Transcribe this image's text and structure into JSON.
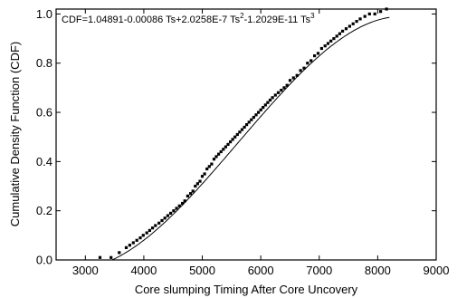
{
  "chart_data": {
    "type": "scatter",
    "title": "",
    "xlabel": "Core slumping Timing After Core Uncovery",
    "ylabel": "Cumulative Density Function (CDF)",
    "xlim": [
      2500,
      9000
    ],
    "ylim": [
      0.0,
      1.02
    ],
    "xticks": [
      "3000",
      "4000",
      "5000",
      "6000",
      "7000",
      "8000",
      "9000"
    ],
    "yticks": [
      "0.0",
      "0.2",
      "0.4",
      "0.6",
      "0.8",
      "1.0"
    ],
    "grid": false,
    "equation": {
      "t1": "CDF=1.04891-0.00086 Ts+2.0258E-7 Ts",
      "s1": "2",
      "t2": "-1.2029E-11 Ts",
      "s2": "3"
    },
    "series": [
      {
        "style": "markers",
        "color": "#000000",
        "x": [
          3250,
          3440,
          3580,
          3700,
          3760,
          3820,
          3880,
          3940,
          3990,
          4050,
          4100,
          4150,
          4200,
          4260,
          4310,
          4360,
          4410,
          4460,
          4510,
          4560,
          4610,
          4660,
          4700,
          4750,
          4800,
          4840,
          4880,
          4920,
          4960,
          5000,
          5040,
          5080,
          5120,
          5160,
          5200,
          5240,
          5280,
          5320,
          5360,
          5400,
          5440,
          5480,
          5520,
          5560,
          5600,
          5640,
          5680,
          5720,
          5760,
          5800,
          5840,
          5880,
          5920,
          5960,
          6000,
          6040,
          6080,
          6120,
          6160,
          6200,
          6250,
          6300,
          6350,
          6400,
          6450,
          6500,
          6560,
          6620,
          6680,
          6740,
          6800,
          6860,
          6920,
          6980,
          7040,
          7100,
          7150,
          7200,
          7250,
          7300,
          7350,
          7400,
          7460,
          7520,
          7580,
          7640,
          7700,
          7780,
          7860,
          7950,
          8050,
          8150
        ],
        "y": [
          0.01,
          0.01,
          0.03,
          0.05,
          0.06,
          0.07,
          0.08,
          0.09,
          0.1,
          0.11,
          0.12,
          0.13,
          0.14,
          0.15,
          0.16,
          0.17,
          0.18,
          0.19,
          0.2,
          0.21,
          0.22,
          0.23,
          0.24,
          0.26,
          0.27,
          0.28,
          0.3,
          0.31,
          0.32,
          0.34,
          0.35,
          0.37,
          0.38,
          0.39,
          0.41,
          0.42,
          0.43,
          0.44,
          0.45,
          0.46,
          0.47,
          0.48,
          0.49,
          0.5,
          0.51,
          0.52,
          0.53,
          0.54,
          0.55,
          0.56,
          0.57,
          0.58,
          0.59,
          0.6,
          0.61,
          0.62,
          0.63,
          0.64,
          0.65,
          0.66,
          0.67,
          0.68,
          0.69,
          0.7,
          0.71,
          0.73,
          0.74,
          0.75,
          0.77,
          0.78,
          0.8,
          0.81,
          0.83,
          0.84,
          0.86,
          0.87,
          0.88,
          0.89,
          0.9,
          0.91,
          0.92,
          0.93,
          0.94,
          0.95,
          0.96,
          0.97,
          0.98,
          0.99,
          1.0,
          1.0,
          1.01,
          1.02
        ]
      },
      {
        "style": "line",
        "color": "#000000",
        "x_range": [
          3450,
          8200
        ],
        "coefficients": [
          1.04891,
          -0.00086,
          2.0258e-07,
          -1.2029e-11
        ]
      }
    ]
  }
}
